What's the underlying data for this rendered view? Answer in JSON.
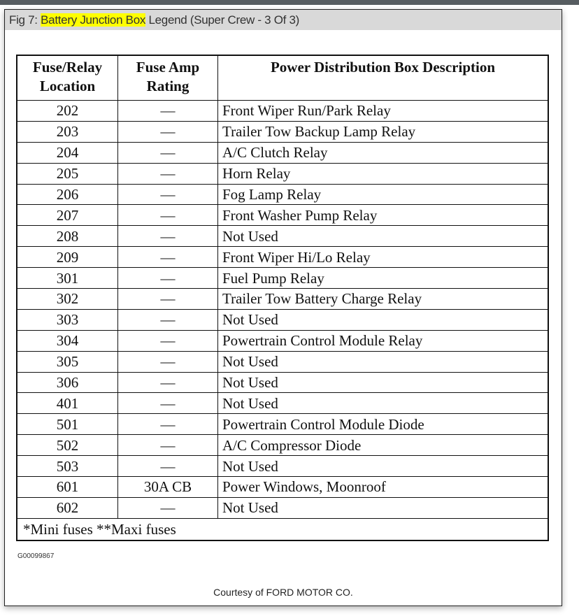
{
  "title": {
    "prefix": "Fig 7: ",
    "highlight": "Battery Junction Box",
    "suffix": " Legend (Super Crew - 3 Of 3)",
    "highlight_color": "#ffff00"
  },
  "table": {
    "headers": [
      "Fuse/Relay Location",
      "Fuse Amp Rating",
      "Power Distribution Box Description"
    ],
    "rows": [
      [
        "202",
        "—",
        "Front Wiper Run/Park Relay"
      ],
      [
        "203",
        "—",
        "Trailer Tow Backup Lamp Relay"
      ],
      [
        "204",
        "—",
        "A/C Clutch Relay"
      ],
      [
        "205",
        "—",
        "Horn Relay"
      ],
      [
        "206",
        "—",
        "Fog Lamp Relay"
      ],
      [
        "207",
        "—",
        "Front Washer Pump Relay"
      ],
      [
        "208",
        "—",
        "Not Used"
      ],
      [
        "209",
        "—",
        "Front Wiper Hi/Lo Relay"
      ],
      [
        "301",
        "—",
        "Fuel Pump Relay"
      ],
      [
        "302",
        "—",
        "Trailer Tow Battery Charge Relay"
      ],
      [
        "303",
        "—",
        "Not Used"
      ],
      [
        "304",
        "—",
        "Powertrain Control Module Relay"
      ],
      [
        "305",
        "—",
        "Not Used"
      ],
      [
        "306",
        "—",
        "Not Used"
      ],
      [
        "401",
        "—",
        "Not Used"
      ],
      [
        "501",
        "—",
        "Powertrain Control Module Diode"
      ],
      [
        "502",
        "—",
        "A/C Compressor Diode"
      ],
      [
        "503",
        "—",
        "Not Used"
      ],
      [
        "601",
        "30A CB",
        "Power Windows, Moonroof"
      ],
      [
        "602",
        "—",
        "Not Used"
      ]
    ],
    "footnote": "*Mini fuses **Maxi fuses"
  },
  "figure_code": "G00099867",
  "courtesy": "Courtesy of FORD MOTOR CO."
}
